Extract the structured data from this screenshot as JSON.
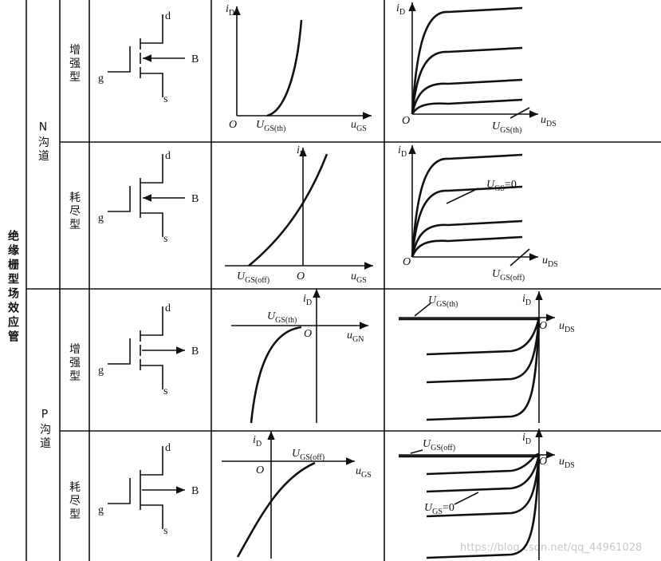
{
  "main_label": "绝缘栅型场效应管",
  "groups": [
    {
      "channel": "N沟道",
      "rows": [
        {
          "mode": "增强型",
          "symbol": [
            "d",
            "B",
            "g",
            "s"
          ],
          "transfer": [
            {
              "main": "i",
              "sub": "D"
            },
            {
              "main": "O"
            },
            {
              "main": "U",
              "sub": "GS(th)"
            },
            {
              "main": "u",
              "sub": "GS"
            }
          ],
          "output": [
            {
              "main": "i",
              "sub": "D"
            },
            {
              "main": "O"
            },
            {
              "main": "U",
              "sub": "GS(th)"
            },
            {
              "main": "u",
              "sub": "DS"
            }
          ]
        },
        {
          "mode": "耗尽型",
          "symbol": [
            "d",
            "B",
            "g",
            "s"
          ],
          "transfer": [
            {
              "main": "i",
              "sub": "D"
            },
            {
              "main": "U",
              "sub": "GS(off)"
            },
            {
              "main": "O"
            },
            {
              "main": "u",
              "sub": "GS"
            }
          ],
          "output": [
            {
              "main": "i",
              "sub": "D"
            },
            {
              "main": "U",
              "sub": "GS",
              "tail": "=0"
            },
            {
              "main": "O"
            },
            {
              "main": "u",
              "sub": "DS"
            },
            {
              "main": "U",
              "sub": "GS(off)"
            }
          ]
        }
      ]
    },
    {
      "channel": "P沟道",
      "rows": [
        {
          "mode": "增强型",
          "symbol": [
            "d",
            "B",
            "g",
            "s"
          ],
          "transfer": [
            {
              "main": "U",
              "sub": "GS(th)"
            },
            {
              "main": "i",
              "sub": "D"
            },
            {
              "main": "O"
            },
            {
              "main": "u",
              "sub": "GN"
            }
          ],
          "output": [
            {
              "main": "U",
              "sub": "GS(th)"
            },
            {
              "main": "i",
              "sub": "D"
            },
            {
              "main": "O"
            },
            {
              "main": "u",
              "sub": "DS"
            }
          ]
        },
        {
          "mode": "耗尽型",
          "symbol": [
            "d",
            "B",
            "g",
            "s"
          ],
          "transfer": [
            {
              "main": "i",
              "sub": "D"
            },
            {
              "main": "U",
              "sub": "GS(off)"
            },
            {
              "main": "O"
            },
            {
              "main": "u",
              "sub": "GS"
            }
          ],
          "output": [
            {
              "main": "U",
              "sub": "GS(off)"
            },
            {
              "main": "i",
              "sub": "D"
            },
            {
              "main": "O"
            },
            {
              "main": "u",
              "sub": "DS"
            },
            {
              "main": "U",
              "sub": "GS",
              "tail": "=0"
            }
          ]
        }
      ]
    }
  ],
  "watermark": "https://blog.csdn.net/qq_44961028"
}
